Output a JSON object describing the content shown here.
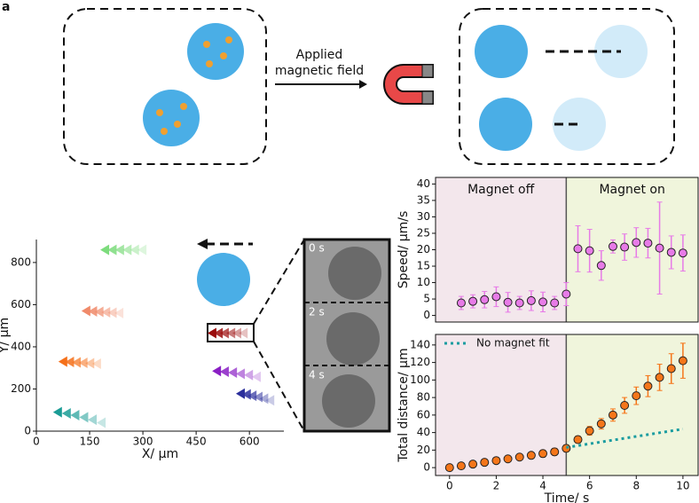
{
  "panel_label": "a",
  "diagram": {
    "label": [
      "Applied",
      "magnetic field"
    ]
  },
  "micrograph": {
    "frames": [
      "0 s",
      "2 s",
      "4 s"
    ]
  },
  "chart_data": [
    {
      "type": "scatter",
      "xlabel": "X/ μm",
      "ylabel": "Y/ μm",
      "xlim": [
        0,
        697
      ],
      "ylim": [
        0,
        909
      ],
      "xticks": [
        0,
        150,
        300,
        450,
        600
      ],
      "yticks": [
        0,
        200,
        400,
        600,
        800
      ],
      "series": [
        {
          "color": "#7ddc7d",
          "x": [
            195,
            216,
            237,
            258,
            279,
            300
          ],
          "values": [
            860,
            860,
            860,
            860,
            860,
            860
          ]
        },
        {
          "color": "#f08a6a",
          "x": [
            142,
            161,
            179,
            198,
            216,
            235
          ],
          "values": [
            570,
            568,
            566,
            564,
            562,
            560
          ]
        },
        {
          "color": "#f5701a",
          "x": [
            77,
            96,
            115,
            134,
            153,
            172
          ],
          "values": [
            330,
            328,
            326,
            324,
            322,
            320
          ]
        },
        {
          "color": "#1a9c95",
          "x": [
            62,
            87,
            111,
            136,
            160,
            185
          ],
          "values": [
            90,
            84,
            76,
            66,
            54,
            40
          ]
        },
        {
          "color": "#9b0d0d",
          "x": [
            497,
            515,
            532,
            550,
            567,
            585
          ],
          "values": [
            465,
            465,
            465,
            465,
            465,
            465
          ]
        },
        {
          "color": "#8a1fc4",
          "x": [
            510,
            532,
            555,
            577,
            600,
            622
          ],
          "values": [
            285,
            282,
            278,
            272,
            266,
            258
          ]
        },
        {
          "color": "#2b2f9c",
          "x": [
            577,
            594,
            610,
            627,
            643,
            660
          ],
          "values": [
            178,
            174,
            168,
            162,
            154,
            146
          ]
        }
      ]
    },
    {
      "type": "errorbar",
      "ylabel": "Speed/ μm/s",
      "xlim": [
        -0.6,
        10.65
      ],
      "ylim": [
        -2,
        42
      ],
      "yticks": [
        0,
        5,
        10,
        15,
        20,
        25,
        30,
        35,
        40
      ],
      "split": 5,
      "shade": [
        "#f3e7ec",
        "#f0f5dc"
      ],
      "annotations": [
        "Magnet off",
        "Magnet on"
      ],
      "series": [
        {
          "color": "#e77be7",
          "x": [
            0.5,
            1,
            1.5,
            2,
            2.5,
            3,
            3.5,
            4,
            4.5,
            5,
            5.5,
            6,
            6.5,
            7,
            7.5,
            8,
            8.5,
            9,
            9.5,
            10
          ],
          "values": [
            3.8,
            4.3,
            4.8,
            5.7,
            4,
            3.8,
            4.5,
            4.1,
            3.8,
            6.5,
            20.3,
            19.7,
            15.2,
            21,
            20.8,
            22.2,
            22,
            20.5,
            19.2,
            19
          ],
          "errors": [
            2,
            2,
            2.5,
            3,
            3,
            2,
            3,
            3,
            2,
            3.5,
            7,
            6.5,
            4.5,
            2,
            4,
            4.5,
            4.5,
            14,
            5,
            5.5
          ]
        }
      ]
    },
    {
      "type": "errorbar",
      "xlabel": "Time/ s",
      "ylabel": "Total distance/ μm",
      "xlim": [
        -0.6,
        10.65
      ],
      "ylim": [
        -9,
        152
      ],
      "xticks": [
        0,
        2,
        4,
        6,
        8,
        10
      ],
      "yticks": [
        0,
        20,
        40,
        60,
        80,
        100,
        120,
        140
      ],
      "split": 5,
      "shade": [
        "#f3e7ec",
        "#f0f5dc"
      ],
      "series": [
        {
          "color": "#f5761a",
          "x": [
            0,
            0.5,
            1,
            1.5,
            2,
            2.5,
            3,
            3.5,
            4,
            4.5,
            5,
            5.5,
            6,
            6.5,
            7,
            7.5,
            8,
            8.5,
            9,
            9.5,
            10
          ],
          "values": [
            0,
            2,
            4,
            6,
            8,
            10,
            12,
            14,
            16,
            18,
            22,
            32,
            42,
            50,
            60,
            71,
            82,
            93,
            103,
            113,
            122
          ],
          "errors": [
            0.5,
            1,
            1.5,
            2,
            2,
            2.5,
            3,
            3,
            4,
            4,
            4,
            4,
            5,
            6,
            7,
            9,
            10,
            12,
            15,
            17,
            20
          ]
        },
        {
          "name": "No magnet fit",
          "color": "#1a9ca0",
          "dotted": true,
          "x": [
            5,
            10
          ],
          "values": [
            23,
            44
          ]
        }
      ]
    }
  ]
}
